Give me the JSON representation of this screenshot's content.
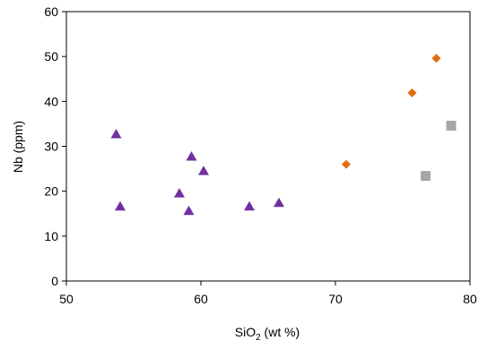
{
  "chart_data": {
    "type": "scatter",
    "title": "",
    "xlabel": {
      "main": "SiO",
      "subscript": "2",
      "suffix": " (wt %)"
    },
    "ylabel": "Nb (ppm)",
    "xlim": [
      50,
      80
    ],
    "ylim": [
      0,
      60
    ],
    "x_ticks": [
      50,
      60,
      70,
      80
    ],
    "y_ticks": [
      0,
      10,
      20,
      30,
      40,
      50,
      60
    ],
    "grid": false,
    "legend": "none",
    "series": [
      {
        "marker": "triangle",
        "color": "#7030a0",
        "points": [
          {
            "x": 53.7,
            "y": 32.7
          },
          {
            "x": 54.0,
            "y": 16.6
          },
          {
            "x": 58.4,
            "y": 19.5
          },
          {
            "x": 59.1,
            "y": 15.6
          },
          {
            "x": 59.3,
            "y": 27.7
          },
          {
            "x": 60.2,
            "y": 24.5
          },
          {
            "x": 63.6,
            "y": 16.6
          },
          {
            "x": 65.8,
            "y": 17.4
          }
        ]
      },
      {
        "marker": "diamond",
        "color": "#e46c0a",
        "points": [
          {
            "x": 70.8,
            "y": 26.0
          },
          {
            "x": 75.7,
            "y": 41.9
          },
          {
            "x": 77.5,
            "y": 49.6
          }
        ]
      },
      {
        "marker": "square",
        "color": "#a6a6a6",
        "points": [
          {
            "x": 76.7,
            "y": 23.4
          },
          {
            "x": 78.6,
            "y": 34.6
          }
        ]
      }
    ]
  }
}
